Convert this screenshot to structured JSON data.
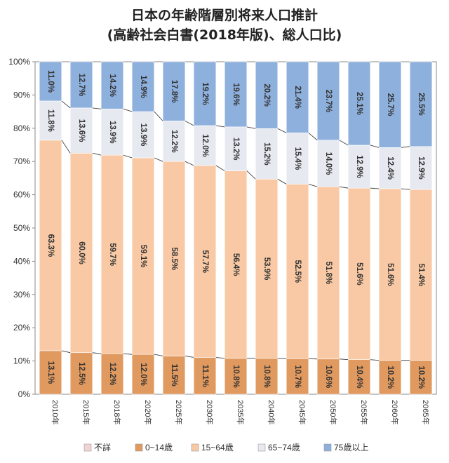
{
  "chart_data": {
    "type": "bar",
    "stacked": true,
    "title": "日本の年齢階層別将来人口推計",
    "subtitle": "(高齢社会白書(2018年版)、総人口比)",
    "categories": [
      "2010年",
      "2015年",
      "2018年",
      "2020年",
      "2025年",
      "2030年",
      "2035年",
      "2040年",
      "2045年",
      "2050年",
      "2055年",
      "2060年",
      "2065年"
    ],
    "ylim": [
      0,
      100
    ],
    "yticks": [
      "0%",
      "10%",
      "20%",
      "30%",
      "40%",
      "50%",
      "60%",
      "70%",
      "80%",
      "90%",
      "100%"
    ],
    "legend_position": "bottom",
    "series": [
      {
        "name": "0~14歳",
        "color": "#E0995F",
        "values": [
          13.1,
          12.5,
          12.2,
          12.0,
          11.5,
          11.1,
          10.8,
          10.8,
          10.7,
          10.6,
          10.4,
          10.2,
          10.2
        ],
        "labels": [
          "13.1%",
          "12.5%",
          "12.2%",
          "12.0%",
          "11.5%",
          "11.1%",
          "10.8%",
          "10.8%",
          "10.7%",
          "10.6%",
          "10.4%",
          "10.2%",
          "10.2%"
        ]
      },
      {
        "name": "15~64歳",
        "color": "#F8C9A4",
        "values": [
          63.3,
          60.0,
          59.7,
          59.1,
          58.5,
          57.7,
          56.4,
          53.9,
          52.5,
          51.8,
          51.6,
          51.6,
          51.4
        ],
        "labels": [
          "63.3%",
          "60.0%",
          "59.7%",
          "59.1%",
          "58.5%",
          "57.7%",
          "56.4%",
          "53.9%",
          "52.5%",
          "51.8%",
          "51.6%",
          "51.6%",
          "51.4%"
        ]
      },
      {
        "name": "65~74歳",
        "color": "#E6E9F0",
        "values": [
          11.8,
          13.6,
          13.9,
          13.9,
          12.2,
          12.0,
          13.2,
          15.2,
          15.4,
          14.0,
          12.9,
          12.4,
          12.9
        ],
        "labels": [
          "11.8%",
          "13.6%",
          "13.9%",
          "13.9%",
          "12.2%",
          "12.0%",
          "13.2%",
          "15.2%",
          "15.4%",
          "14.0%",
          "12.9%",
          "12.4%",
          "12.9%"
        ]
      },
      {
        "name": "75歳以上",
        "color": "#8EB0DD",
        "values": [
          11.0,
          12.7,
          14.2,
          14.9,
          17.8,
          19.2,
          19.6,
          20.2,
          21.4,
          23.7,
          25.1,
          25.7,
          25.5
        ],
        "labels": [
          "11.0%",
          "12.7%",
          "14.2%",
          "14.9%",
          "17.8%",
          "19.2%",
          "19.6%",
          "20.2%",
          "21.4%",
          "23.7%",
          "25.1%",
          "25.7%",
          "25.5%"
        ]
      }
    ],
    "legend": [
      {
        "name": "不詳",
        "color": "#F2D3D3"
      },
      {
        "name": "0~14歳",
        "color": "#E0995F"
      },
      {
        "name": "15~64歳",
        "color": "#F8C9A4"
      },
      {
        "name": "65~74歳",
        "color": "#E6E9F0"
      },
      {
        "name": "75歳以上",
        "color": "#8EB0DD"
      }
    ]
  }
}
